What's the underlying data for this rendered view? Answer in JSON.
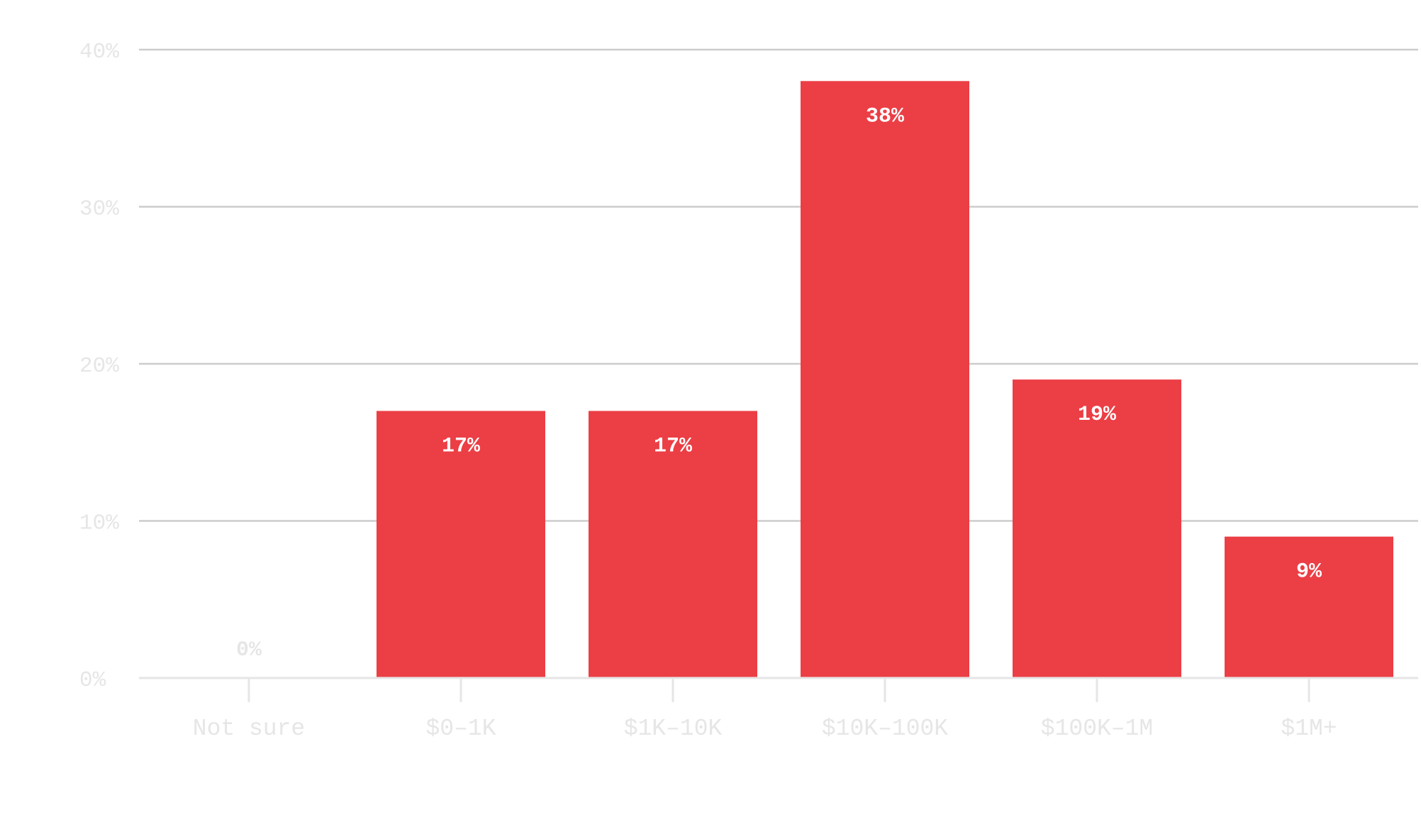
{
  "chart_data": {
    "type": "bar",
    "categories": [
      "Not sure",
      "$0–1K",
      "$1K–10K",
      "$10K–100K",
      "$100K–1M",
      "$1M+"
    ],
    "values": [
      0,
      17,
      17,
      38,
      19,
      9
    ],
    "value_labels": [
      "0%",
      "17%",
      "17%",
      "38%",
      "19%",
      "9%"
    ],
    "ylim": [
      0,
      40
    ],
    "yticks": [
      0,
      10,
      20,
      30,
      40
    ],
    "ytick_labels": [
      "0%",
      "10%",
      "20%",
      "30%",
      "40%"
    ],
    "grid": true,
    "legend": "none",
    "title": "",
    "xlabel": "",
    "ylabel": ""
  },
  "colors": {
    "bar": "#ec3e45",
    "grid": "#cccccc",
    "baseline": "#e6e6e6",
    "axis_text": "#e6e6e6",
    "label_inside": "#ffffff",
    "label_outside": "#e6e6e6"
  }
}
